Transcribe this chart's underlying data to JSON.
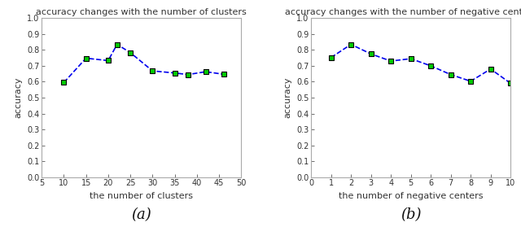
{
  "chart_a": {
    "title": "accuracy changes with the number of clusters",
    "xlabel": "the number of clusters",
    "ylabel": "accuracy",
    "x": [
      10,
      15,
      20,
      22,
      25,
      30,
      35,
      38,
      42,
      46
    ],
    "y": [
      0.595,
      0.748,
      0.733,
      0.835,
      0.783,
      0.668,
      0.655,
      0.645,
      0.663,
      0.647
    ],
    "xlim": [
      5,
      50
    ],
    "xticks": [
      5,
      10,
      15,
      20,
      25,
      30,
      35,
      40,
      45,
      50
    ],
    "ylim": [
      0,
      1.0
    ],
    "yticks": [
      0,
      0.1,
      0.2,
      0.3,
      0.4,
      0.5,
      0.6,
      0.7,
      0.8,
      0.9,
      1.0
    ]
  },
  "chart_b": {
    "title": "accuracy changes with the number of negative centers",
    "xlabel": "the number of negative centers",
    "ylabel": "accuracy",
    "x": [
      1,
      2,
      3,
      4,
      5,
      6,
      7,
      8,
      9,
      10
    ],
    "y": [
      0.752,
      0.835,
      0.775,
      0.73,
      0.745,
      0.7,
      0.645,
      0.603,
      0.68,
      0.59
    ],
    "xlim": [
      0,
      10
    ],
    "xticks": [
      0,
      1,
      2,
      3,
      4,
      5,
      6,
      7,
      8,
      9,
      10
    ],
    "ylim": [
      0,
      1.0
    ],
    "yticks": [
      0,
      0.1,
      0.2,
      0.3,
      0.4,
      0.5,
      0.6,
      0.7,
      0.8,
      0.9,
      1.0
    ]
  },
  "line_color": "#0000EE",
  "marker_face_color": "#00CC00",
  "marker_edge_color": "#000000",
  "marker_style": "s",
  "marker_size": 5,
  "line_style": "--",
  "line_width": 1.2,
  "label_a": "(a)",
  "label_b": "(b)",
  "bg_color": "#FFFFFF",
  "spine_color": "#AAAAAA",
  "title_fontsize": 8,
  "label_fontsize": 8,
  "tick_fontsize": 7,
  "caption_fontsize": 13
}
